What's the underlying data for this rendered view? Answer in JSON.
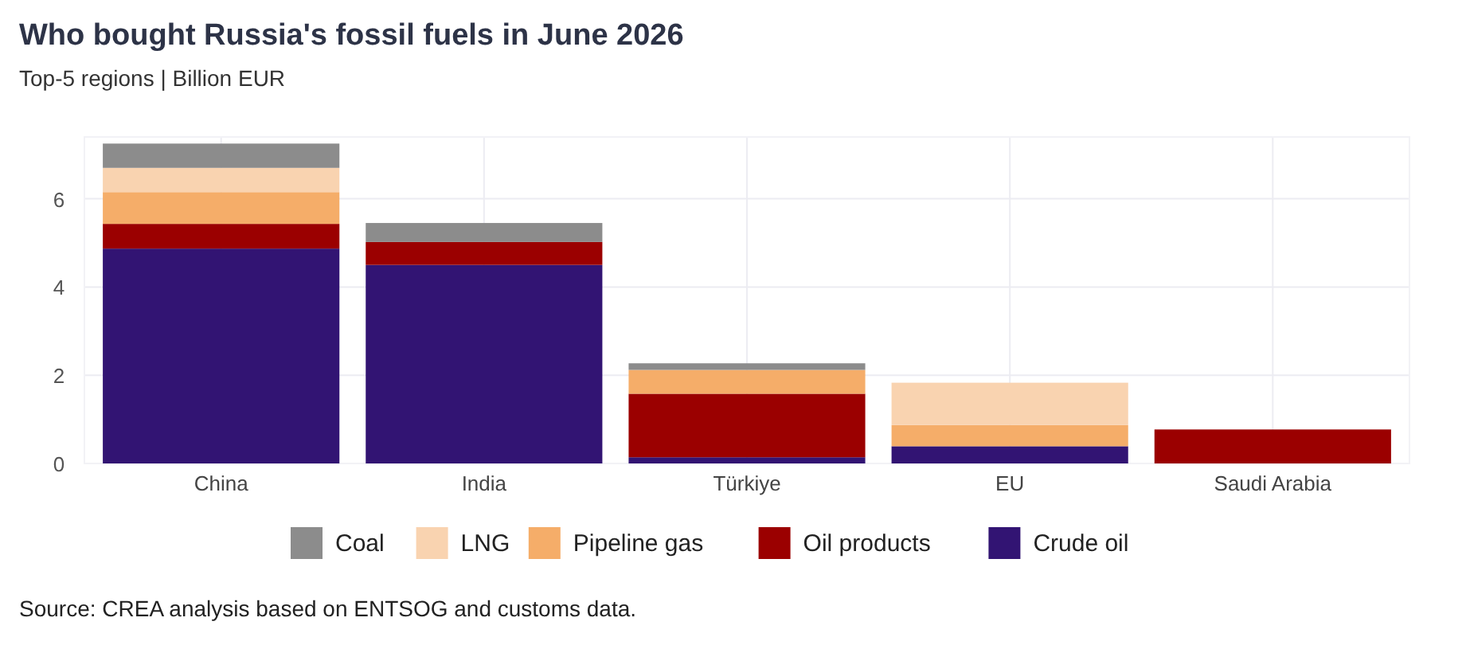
{
  "chart_data": {
    "type": "bar",
    "title": "Who bought Russia's fossil fuels in June 2026",
    "subtitle": "Top-5 regions | Billion EUR",
    "categories": [
      "China",
      "India",
      "Türkiye",
      "EU",
      "Saudi Arabia"
    ],
    "stacked": true,
    "series": [
      {
        "name": "Crude oil",
        "color": "#321473",
        "values": [
          4.87,
          4.5,
          0.14,
          0.39,
          0
        ]
      },
      {
        "name": "Oil products",
        "color": "#9b0000",
        "values": [
          0.56,
          0.52,
          1.44,
          0,
          0.77
        ]
      },
      {
        "name": "Pipeline gas",
        "color": "#f5ad69",
        "values": [
          0.72,
          0,
          0.54,
          0.48,
          0
        ]
      },
      {
        "name": "LNG",
        "color": "#f9d3b0",
        "values": [
          0.55,
          0,
          0,
          0.96,
          0
        ]
      },
      {
        "name": "Coal",
        "color": "#8c8c8c",
        "values": [
          0.55,
          0.43,
          0.15,
          0,
          0
        ]
      }
    ],
    "ylim": [
      0,
      7.4
    ],
    "yticks": [
      0,
      2,
      4,
      6
    ],
    "grid": true,
    "legend": "bottom",
    "annotations": [
      "Source: CREA analysis based on ENTSOG and customs data."
    ]
  }
}
